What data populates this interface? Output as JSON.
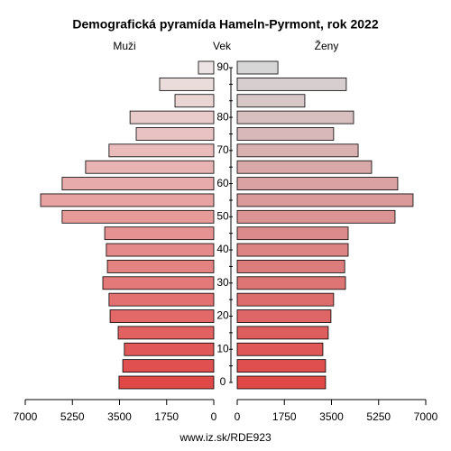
{
  "chart_data": {
    "type": "pyramid",
    "title": "Demografická pyramída Hameln-Pyrmont, rok 2022",
    "y_axis_label": "Vek",
    "footer": "www.iz.sk/RDE923",
    "categories": [
      "0",
      null,
      "10",
      null,
      "20",
      null,
      "30",
      null,
      "40",
      null,
      "50",
      null,
      "60",
      null,
      "70",
      null,
      "80",
      null,
      null,
      "90"
    ],
    "series": [
      {
        "name": "Muži",
        "side": "left",
        "colors": [
          "#e04848",
          "#ece4e4"
        ],
        "values": [
          3520,
          3380,
          3320,
          3550,
          3850,
          3890,
          4120,
          3950,
          3990,
          4050,
          5630,
          6430,
          5630,
          4760,
          3890,
          2880,
          3110,
          1440,
          2010,
          570
        ]
      },
      {
        "name": "Ženy",
        "side": "right",
        "colors": [
          "#e04848",
          "#d6d6d6"
        ],
        "values": [
          3280,
          3280,
          3180,
          3380,
          3480,
          3580,
          4020,
          3990,
          4120,
          4120,
          5860,
          6530,
          5960,
          4990,
          4490,
          3580,
          4320,
          2510,
          4050,
          1510
        ]
      }
    ],
    "xlim": [
      0,
      7000
    ],
    "xticks": [
      0,
      1750,
      3500,
      5250,
      7000
    ]
  }
}
